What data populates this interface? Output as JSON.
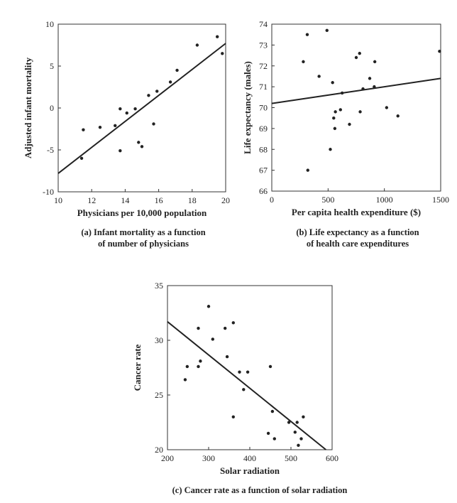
{
  "chart_data": [
    {
      "type": "scatter",
      "title": "",
      "caption": [
        "(a) Infant mortality as a function",
        "of number of physicians"
      ],
      "xlabel": "Physicians per 10,000 population",
      "ylabel": "Adjusted infant mortality",
      "xlim": [
        10,
        20
      ],
      "ylim": [
        -10,
        10
      ],
      "xticks": [
        10,
        12,
        14,
        16,
        18,
        20
      ],
      "yticks": [
        -10,
        -5,
        0,
        5,
        10
      ],
      "grid": false,
      "series": [
        {
          "points": [
            [
              11.4,
              -6.0
            ],
            [
              11.5,
              -2.6
            ],
            [
              12.5,
              -2.3
            ],
            [
              13.4,
              -2.1
            ],
            [
              13.7,
              -5.1
            ],
            [
              13.7,
              -0.1
            ],
            [
              14.1,
              -0.6
            ],
            [
              14.6,
              -0.1
            ],
            [
              14.8,
              -4.1
            ],
            [
              15.0,
              -4.6
            ],
            [
              15.4,
              1.5
            ],
            [
              15.7,
              -1.9
            ],
            [
              15.9,
              2.0
            ],
            [
              16.7,
              3.1
            ],
            [
              17.1,
              4.5
            ],
            [
              18.3,
              7.5
            ],
            [
              19.5,
              8.5
            ],
            [
              19.8,
              6.5
            ]
          ]
        }
      ],
      "fit_line": [
        [
          10,
          -7.8
        ],
        [
          20,
          7.7
        ]
      ]
    },
    {
      "type": "scatter",
      "title": "",
      "caption": [
        "(b) Life expectancy as a function",
        "of health care expenditures"
      ],
      "xlabel": "Per capita health expenditure ($)",
      "ylabel": "Life expectancy (males)",
      "xlim": [
        0,
        1500
      ],
      "ylim": [
        66,
        74
      ],
      "xticks": [
        0,
        500,
        1000,
        1500
      ],
      "yticks": [
        66,
        67,
        68,
        69,
        70,
        71,
        72,
        73,
        74
      ],
      "grid": false,
      "series": [
        {
          "points": [
            [
              280,
              72.2
            ],
            [
              315,
              73.5
            ],
            [
              320,
              67.0
            ],
            [
              420,
              71.5
            ],
            [
              490,
              73.7
            ],
            [
              520,
              68.0
            ],
            [
              540,
              71.2
            ],
            [
              550,
              69.5
            ],
            [
              560,
              69.0
            ],
            [
              565,
              69.8
            ],
            [
              610,
              69.9
            ],
            [
              625,
              70.7
            ],
            [
              690,
              69.2
            ],
            [
              750,
              72.4
            ],
            [
              780,
              72.6
            ],
            [
              785,
              69.8
            ],
            [
              810,
              70.9
            ],
            [
              870,
              71.4
            ],
            [
              910,
              71.0
            ],
            [
              915,
              72.2
            ],
            [
              1020,
              70.0
            ],
            [
              1120,
              69.6
            ],
            [
              1490,
              72.7
            ]
          ]
        }
      ],
      "fit_line": [
        [
          0,
          70.2
        ],
        [
          1500,
          71.4
        ]
      ]
    },
    {
      "type": "scatter",
      "title": "",
      "caption": [
        "(c) Cancer rate as a function of solar radiation"
      ],
      "xlabel": "Solar radiation",
      "ylabel": "Cancer rate",
      "xlim": [
        200,
        600
      ],
      "ylim": [
        20,
        35
      ],
      "xticks": [
        200,
        300,
        400,
        500,
        600
      ],
      "yticks": [
        20,
        25,
        30,
        35
      ],
      "grid": false,
      "series": [
        {
          "points": [
            [
              243,
              26.4
            ],
            [
              248,
              27.6
            ],
            [
              275,
              27.6
            ],
            [
              275,
              31.1
            ],
            [
              280,
              28.1
            ],
            [
              300,
              33.1
            ],
            [
              310,
              30.1
            ],
            [
              340,
              31.1
            ],
            [
              345,
              28.5
            ],
            [
              360,
              31.6
            ],
            [
              360,
              23.0
            ],
            [
              375,
              27.1
            ],
            [
              385,
              25.5
            ],
            [
              395,
              27.1
            ],
            [
              445,
              21.5
            ],
            [
              450,
              27.6
            ],
            [
              455,
              23.5
            ],
            [
              460,
              21.0
            ],
            [
              495,
              22.5
            ],
            [
              510,
              21.6
            ],
            [
              515,
              22.5
            ],
            [
              518,
              20.4
            ],
            [
              525,
              21.0
            ],
            [
              530,
              23.0
            ]
          ]
        }
      ],
      "fit_line": [
        [
          200,
          31.7
        ],
        [
          585,
          20.0
        ]
      ]
    }
  ]
}
